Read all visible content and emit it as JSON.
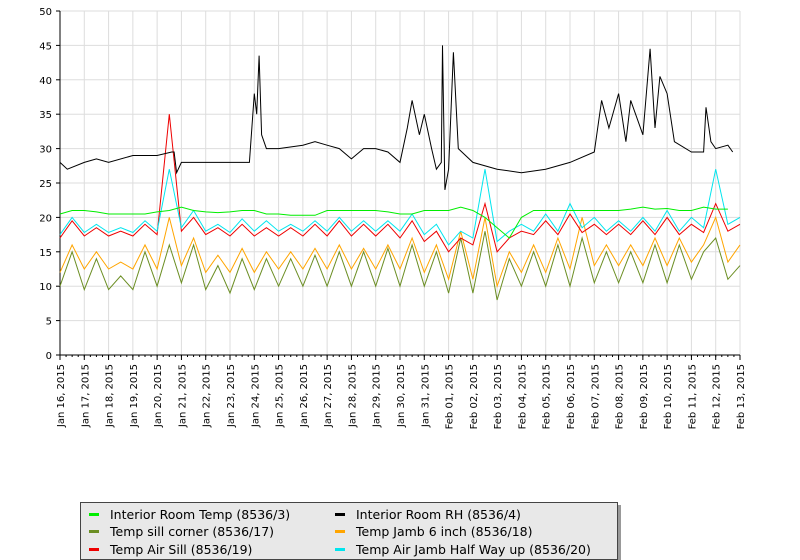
{
  "chart_data": {
    "type": "line",
    "title": "",
    "xlabel": "",
    "ylabel": "",
    "ylim": [
      0,
      50
    ],
    "yticks": [
      "0",
      "5",
      "10",
      "15",
      "20",
      "25",
      "30",
      "35",
      "40",
      "45",
      "50"
    ],
    "x_start": "Jan 16, 2015",
    "x_unit": "days since Jan 16, 2015",
    "xlim": [
      0,
      28
    ],
    "xticks": [
      "Jan 16, 2015",
      "Jan 17, 2015",
      "Jan 18, 2015",
      "Jan 19, 2015",
      "Jan 20, 2015",
      "Jan 21, 2015",
      "Jan 22, 2015",
      "Jan 23, 2015",
      "Jan 24, 2015",
      "Jan 25, 2015",
      "Jan 26, 2015",
      "Jan 27, 2015",
      "Jan 28, 2015",
      "Jan 29, 2015",
      "Jan 30, 2015",
      "Jan 31, 2015",
      "Feb 01, 2015",
      "Feb 02, 2015",
      "Feb 03, 2015",
      "Feb 04, 2015",
      "Feb 05, 2015",
      "Feb 06, 2015",
      "Feb 07, 2015",
      "Feb 08, 2015",
      "Feb 09, 2015",
      "Feb 10, 2015",
      "Feb 11, 2015",
      "Feb 12, 2015",
      "Feb 13, 2015"
    ],
    "grid": true,
    "legend_position": "bottom",
    "series": [
      {
        "name": "Interior Room RH (8536/4)",
        "color": "#000000",
        "x": [
          0,
          0.3,
          1,
          1.5,
          2,
          3,
          4,
          4.6,
          4.7,
          4.8,
          5,
          6,
          7,
          7.8,
          8.0,
          8.1,
          8.2,
          8.3,
          8.5,
          9,
          10,
          10.5,
          11,
          11.5,
          12,
          12.5,
          13,
          13.5,
          14,
          14.3,
          14.5,
          14.8,
          15,
          15.3,
          15.5,
          15.7,
          15.75,
          15.85,
          16,
          16.2,
          16.4,
          17,
          18,
          19,
          20,
          21,
          22,
          22.3,
          22.6,
          23,
          23.3,
          23.5,
          24,
          24.3,
          24.5,
          24.7,
          25,
          25.3,
          26,
          26.5,
          26.6,
          26.8,
          27,
          27.5,
          27.7
        ],
        "y": [
          28,
          27,
          28,
          28.5,
          28,
          29,
          29,
          29.5,
          29.5,
          26.5,
          28,
          28,
          28,
          28,
          38,
          35,
          43.5,
          32,
          30,
          30,
          30.5,
          31,
          30.5,
          30,
          28.5,
          30,
          30,
          29.5,
          28,
          33,
          37,
          32,
          35,
          30,
          27,
          28,
          45,
          24,
          27,
          44,
          30,
          28,
          27,
          26.5,
          27,
          28,
          29.5,
          37,
          33,
          38,
          31,
          37,
          32,
          44.5,
          33,
          40.5,
          38,
          31,
          29.5,
          29.5,
          36,
          31,
          30,
          30.5,
          29.5
        ]
      },
      {
        "name": "Interior Room Temp (8536/3)",
        "color": "#00ee00",
        "step": 0.5,
        "y": [
          20.5,
          21,
          21,
          20.8,
          20.5,
          20.5,
          20.5,
          20.5,
          20.8,
          21,
          21.5,
          21,
          20.8,
          20.7,
          20.8,
          21,
          21,
          20.5,
          20.5,
          20.3,
          20.3,
          20.3,
          21,
          21,
          21,
          21,
          21,
          20.8,
          20.5,
          20.5,
          21,
          21,
          21,
          21.5,
          21,
          20,
          18.5,
          17,
          20,
          21,
          21,
          21,
          21,
          21,
          21,
          21,
          21,
          21.2,
          21.5,
          21.2,
          21.3,
          21,
          21,
          21.5,
          21.2,
          21.2
        ]
      },
      {
        "name": "Temp Air Jamb Half Way up (8536/20)",
        "color": "#00e5ee",
        "step": 0.5,
        "y": [
          17.5,
          20,
          17.8,
          19,
          17.8,
          18.5,
          17.8,
          19.5,
          18,
          27,
          18.5,
          21,
          18,
          19,
          17.8,
          19.8,
          18,
          19.5,
          18,
          19,
          18,
          19.5,
          18,
          20,
          18,
          19.5,
          18,
          19.5,
          18,
          20.5,
          17.5,
          19,
          16,
          18,
          17,
          27,
          16.5,
          18,
          19,
          18,
          20.5,
          18,
          22,
          18.5,
          20,
          18,
          19.5,
          18,
          20,
          18,
          21,
          18,
          20,
          18.5,
          27,
          19,
          20
        ]
      },
      {
        "name": "Temp Air Sill (8536/19)",
        "color": "#ee0000",
        "step": 0.5,
        "y": [
          17,
          19.5,
          17.3,
          18.5,
          17.3,
          18,
          17.3,
          19,
          17.5,
          35,
          18,
          20,
          17.5,
          18.5,
          17.3,
          19,
          17.3,
          18.5,
          17.3,
          18.5,
          17.3,
          19,
          17.3,
          19.5,
          17.3,
          19,
          17.3,
          19,
          17,
          19.5,
          16.5,
          18,
          15,
          17,
          16,
          22,
          15,
          17,
          18,
          17.5,
          19.5,
          17.5,
          20.5,
          17.8,
          19,
          17.5,
          19,
          17.5,
          19.5,
          17.5,
          20,
          17.5,
          19,
          17.8,
          22,
          18,
          19
        ]
      },
      {
        "name": "Temp Jamb 6 inch (8536/18)",
        "color": "#ffa500",
        "step": 0.5,
        "y": [
          12,
          16,
          12.5,
          15,
          12.5,
          13.5,
          12.5,
          16,
          12.5,
          20,
          13,
          17,
          12,
          14.5,
          12,
          15.5,
          12,
          15,
          12.5,
          15,
          12.5,
          15.5,
          12.5,
          16,
          12.5,
          15.5,
          12.5,
          16,
          12.5,
          17,
          12,
          16,
          11,
          18,
          11,
          20,
          10,
          15,
          12,
          16,
          12,
          17,
          12.5,
          20,
          13,
          16,
          13,
          16,
          13,
          17,
          13,
          17,
          13.5,
          16,
          20,
          13.5,
          16
        ]
      },
      {
        "name": "Temp sill corner (8536/17)",
        "color": "#6b8e23",
        "step": 0.5,
        "y": [
          10,
          15,
          9.5,
          14,
          9.5,
          11.5,
          9.5,
          15,
          10,
          16,
          10.5,
          16,
          9.5,
          13,
          9,
          14,
          9.5,
          14,
          10,
          14,
          10,
          14.5,
          10,
          15,
          10,
          15,
          10,
          15.5,
          10,
          16,
          10,
          15,
          9,
          17,
          9,
          18,
          8,
          14,
          10,
          15,
          10,
          16,
          10,
          17,
          10.5,
          15,
          10.5,
          15,
          10.5,
          16,
          10.5,
          16,
          11,
          15,
          17,
          11,
          13
        ]
      }
    ]
  },
  "legend": [
    {
      "label": "Interior Room Temp (8536/3)",
      "color": "#00ee00"
    },
    {
      "label": "Interior Room RH (8536/4)",
      "color": "#000000"
    },
    {
      "label": "Temp sill corner (8536/17)",
      "color": "#6b8e23"
    },
    {
      "label": "Temp Jamb 6 inch (8536/18)",
      "color": "#ffa500"
    },
    {
      "label": "Temp Air Sill (8536/19)",
      "color": "#ee0000"
    },
    {
      "label": "Temp Air Jamb Half Way up (8536/20)",
      "color": "#00e5ee"
    }
  ]
}
